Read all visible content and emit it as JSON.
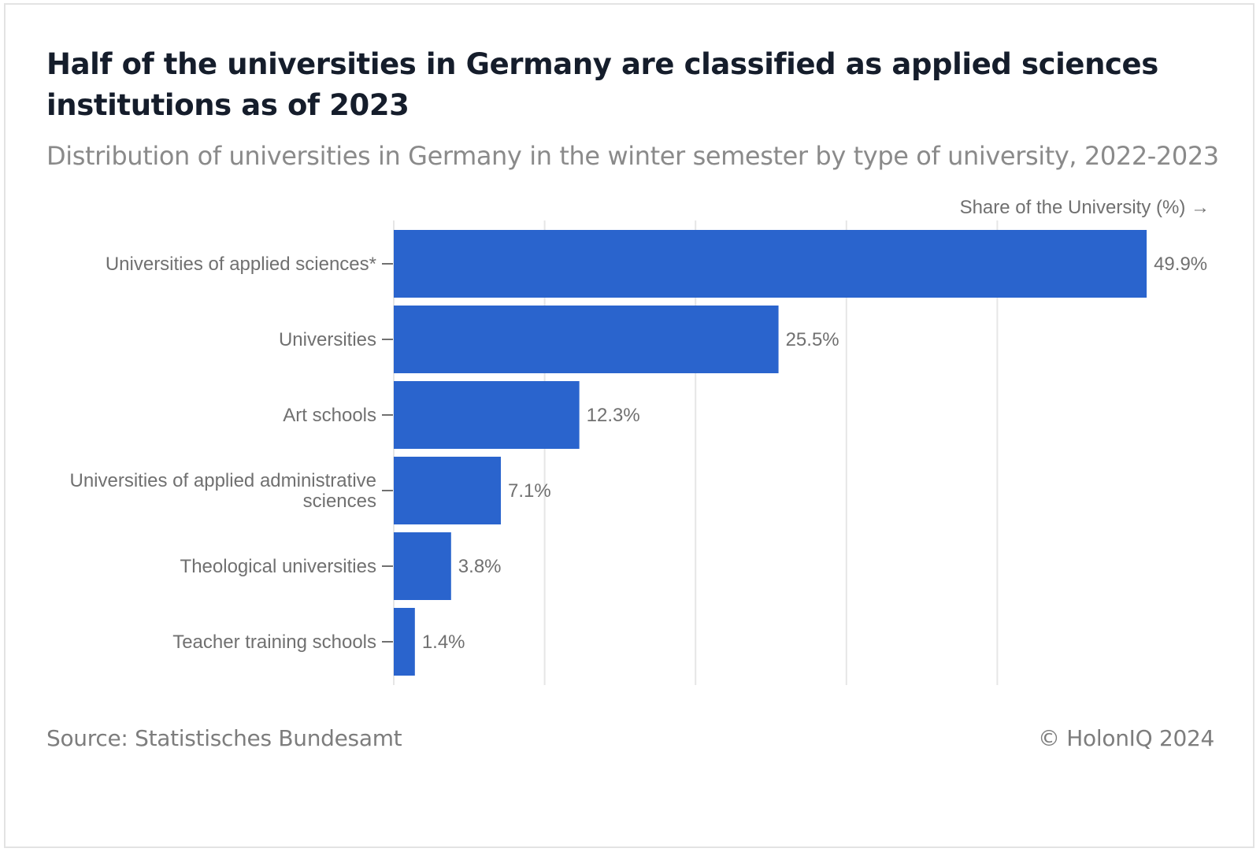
{
  "header": {
    "title": "Half of the universities in Germany are classified as applied sciences institutions as of 2023",
    "subtitle": "Distribution of universities in Germany in the winter semester by type of university, 2022-2023"
  },
  "chart_data": {
    "type": "bar",
    "orientation": "horizontal",
    "axis_title": "Share of the University (%) →",
    "categories": [
      [
        "Universities of applied sciences*"
      ],
      [
        "Universities"
      ],
      [
        "Art schools"
      ],
      [
        "Universities of applied administrative",
        "sciences"
      ],
      [
        "Theological universities"
      ],
      [
        "Teacher training schools"
      ]
    ],
    "values": [
      49.9,
      25.5,
      12.3,
      7.1,
      3.8,
      1.4
    ],
    "value_labels": [
      "49.9%",
      "25.5%",
      "12.3%",
      "7.1%",
      "3.8%",
      "1.4%"
    ],
    "xlim": [
      0,
      50
    ],
    "grid": true,
    "bar_color": "#2a64cd",
    "gridline_color": "#e6e6e6",
    "label_color": "#707070"
  },
  "footer": {
    "source": "Source: Statistisches Bundesamt",
    "copyright": "© HolonIQ 2024"
  }
}
